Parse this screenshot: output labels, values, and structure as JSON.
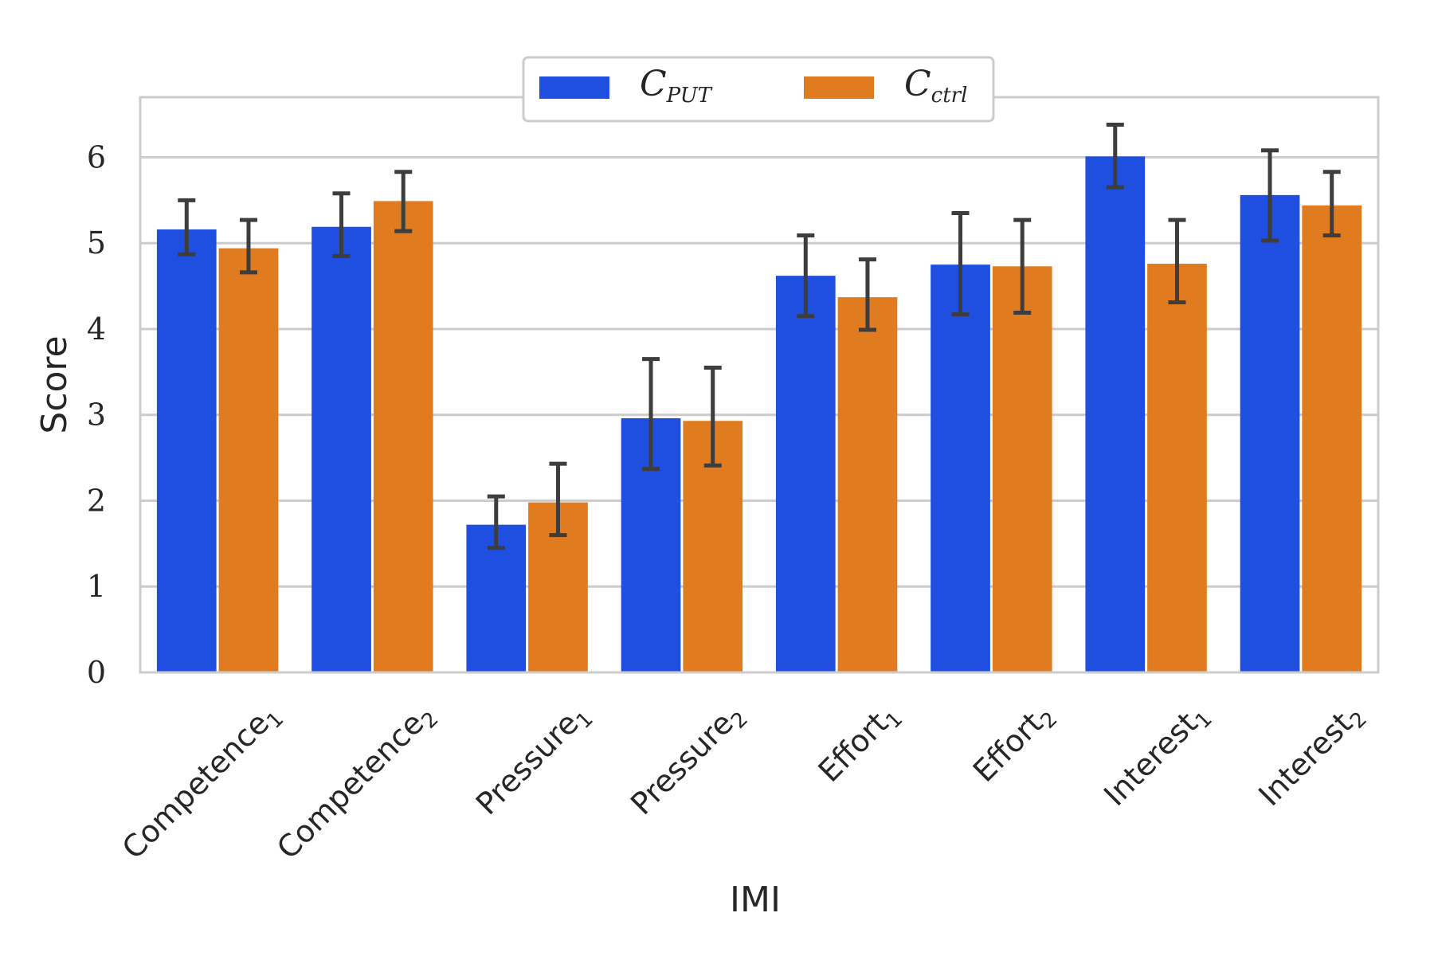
{
  "chart_data": {
    "type": "bar",
    "xlabel": "IMI",
    "ylabel": "Score",
    "ylim": [
      0,
      6.7
    ],
    "yticks": [
      0,
      1,
      2,
      3,
      4,
      5,
      6
    ],
    "grid": true,
    "legend_placement": "top-center",
    "categories": [
      {
        "base": "Competence",
        "sub": "1"
      },
      {
        "base": "Competence",
        "sub": "2"
      },
      {
        "base": "Pressure",
        "sub": "1"
      },
      {
        "base": "Pressure",
        "sub": "2"
      },
      {
        "base": "Effort",
        "sub": "1"
      },
      {
        "base": "Effort",
        "sub": "2"
      },
      {
        "base": "Interest",
        "sub": "1"
      },
      {
        "base": "Interest",
        "sub": "2"
      }
    ],
    "series": [
      {
        "name": "C",
        "name_sub": "PUT",
        "color": "#1f4fe0",
        "values": [
          5.16,
          5.19,
          1.72,
          2.96,
          4.62,
          4.75,
          6.01,
          5.56
        ],
        "err_low": [
          4.87,
          4.85,
          1.45,
          2.37,
          4.15,
          4.17,
          5.65,
          5.03
        ],
        "err_high": [
          5.5,
          5.58,
          2.05,
          3.65,
          5.09,
          5.35,
          6.38,
          6.08
        ]
      },
      {
        "name": "C",
        "name_sub": "ctrl",
        "color": "#e07b20",
        "values": [
          4.94,
          5.49,
          1.98,
          2.93,
          4.37,
          4.73,
          4.76,
          5.44
        ],
        "err_low": [
          4.66,
          5.14,
          1.6,
          2.41,
          3.99,
          4.19,
          4.31,
          5.09
        ],
        "err_high": [
          5.27,
          5.83,
          2.43,
          3.55,
          4.81,
          5.27,
          5.27,
          5.83
        ]
      }
    ]
  }
}
